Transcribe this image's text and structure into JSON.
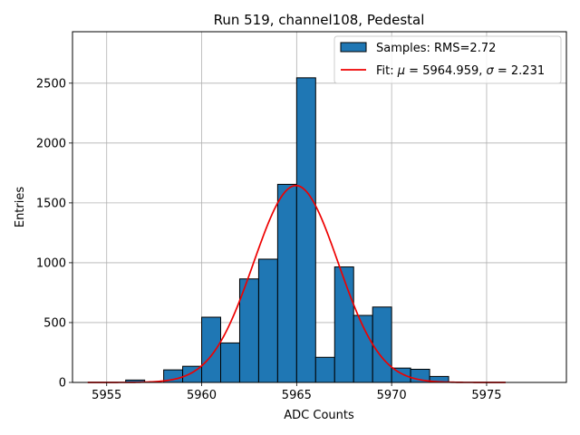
{
  "chart_data": {
    "type": "bar",
    "title": "Run 519, channel108, Pedestal",
    "xlabel": "ADC Counts",
    "ylabel": "Entries",
    "xlim": [
      5953.2,
      5979.2
    ],
    "ylim": [
      0,
      2930
    ],
    "grid": true,
    "legend_position": "top-right",
    "x_ticks": [
      5955,
      5960,
      5965,
      5970,
      5975
    ],
    "y_ticks": [
      0,
      500,
      1000,
      1500,
      2000,
      2500
    ],
    "histogram": {
      "name": "Samples: RMS=2.72",
      "color": "#1f77b4",
      "edgecolor": "#000000",
      "bin_width": 1,
      "bin_starts": [
        5956,
        5958,
        5959,
        5960,
        5961,
        5962,
        5963,
        5964,
        5965,
        5966,
        5967,
        5968,
        5969,
        5970,
        5971,
        5972
      ],
      "counts": [
        20,
        105,
        135,
        545,
        330,
        865,
        1030,
        1655,
        2545,
        210,
        965,
        560,
        630,
        120,
        110,
        50
      ]
    },
    "fit": {
      "name": "Fit: μ = 5964.959, σ = 2.231",
      "name_prefix": "Fit: ",
      "mu_symbol": "μ",
      "mu_text": " = 5964.959, ",
      "sigma_symbol": "σ",
      "sigma_text": " = 2.231",
      "color": "#ee0000",
      "mu": 5964.959,
      "sigma": 2.231,
      "amplitude": 1645,
      "x_range": [
        5954,
        5976
      ]
    }
  }
}
